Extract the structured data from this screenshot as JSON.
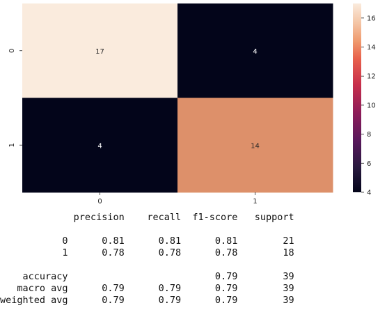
{
  "chart_data": {
    "type": "heatmap",
    "title": "",
    "xlabel": "",
    "ylabel": "",
    "x_categories": [
      "0",
      "1"
    ],
    "y_categories": [
      "0",
      "1"
    ],
    "values": [
      [
        17,
        4
      ],
      [
        4,
        14
      ]
    ],
    "annotations": true,
    "colormap": "rocket",
    "colorbar": {
      "range": [
        4,
        17
      ],
      "ticks": [
        "4",
        "6",
        "8",
        "10",
        "12",
        "14",
        "16"
      ]
    },
    "colors": {
      "low": "#03051a",
      "high": "#faebdd",
      "cell_14": "#dd906a",
      "annotation_on_light": "#262626",
      "annotation_on_dark": "#ffffff",
      "axis_text": "#222222"
    }
  },
  "report": {
    "columns": [
      "precision",
      "recall",
      "f1-score",
      "support"
    ],
    "rows": [
      {
        "label": "0",
        "precision": "0.81",
        "recall": "0.81",
        "f1": "0.81",
        "support": "21"
      },
      {
        "label": "1",
        "precision": "0.78",
        "recall": "0.78",
        "f1": "0.78",
        "support": "18"
      },
      {
        "label": "",
        "precision": "",
        "recall": "",
        "f1": "",
        "support": ""
      },
      {
        "label": "accuracy",
        "precision": "",
        "recall": "",
        "f1": "0.79",
        "support": "39"
      },
      {
        "label": "macro avg",
        "precision": "0.79",
        "recall": "0.79",
        "f1": "0.79",
        "support": "39"
      },
      {
        "label": "weighted avg",
        "precision": "0.79",
        "recall": "0.79",
        "f1": "0.79",
        "support": "39"
      }
    ]
  }
}
